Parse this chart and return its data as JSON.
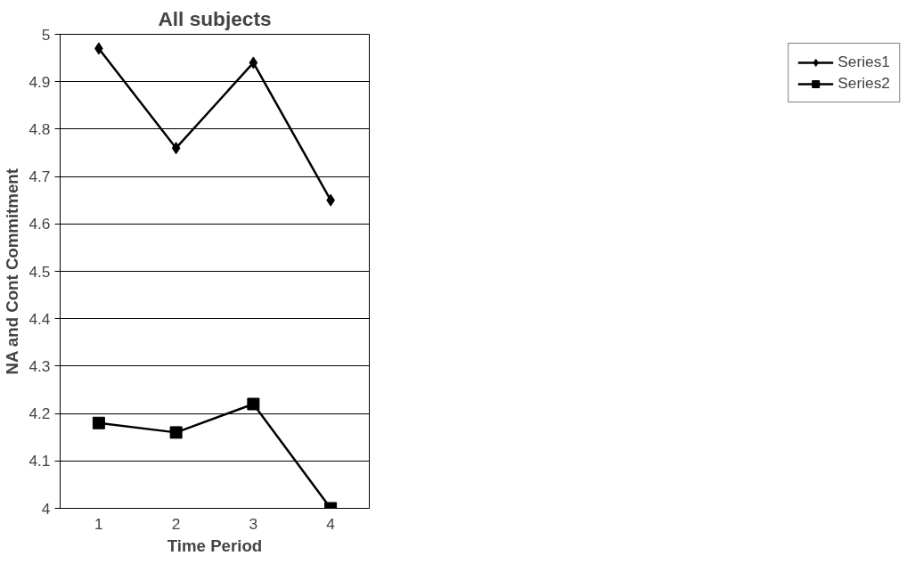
{
  "chart_data": {
    "type": "line",
    "title": "All subjects",
    "xlabel": "Time Period",
    "ylabel": "NA and Cont Commitment",
    "categories": [
      "1",
      "2",
      "3",
      "4"
    ],
    "series": [
      {
        "name": "Series1",
        "color": "#000000",
        "marker": "diamond",
        "values": [
          4.97,
          4.76,
          4.94,
          4.65
        ]
      },
      {
        "name": "Series2",
        "color": "#000000",
        "marker": "square",
        "values": [
          4.18,
          4.16,
          4.22,
          4.0
        ]
      }
    ],
    "ylim": [
      4,
      5
    ],
    "yticks": [
      4,
      4.1,
      4.2,
      4.3,
      4.4,
      4.5,
      4.6,
      4.7,
      4.8,
      4.9,
      5
    ],
    "grid": "y",
    "legend": "right",
    "line_style": "solid"
  }
}
